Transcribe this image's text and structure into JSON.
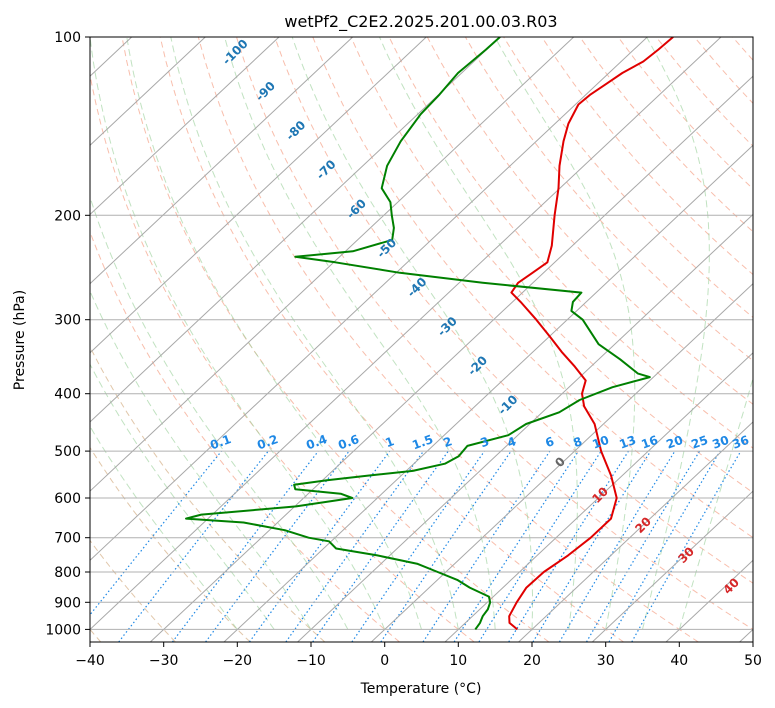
{
  "chart_data": {
    "type": "skewt",
    "title": "wetPf2_C2E2.2025.201.00.03.R03",
    "xlabel": "Temperature (°C)",
    "ylabel": "Pressure (hPa)",
    "xlim": [
      -40,
      50
    ],
    "ylim": [
      1050,
      100
    ],
    "x_ticks": [
      "−40",
      "−30",
      "−20",
      "−10",
      "0",
      "10",
      "20",
      "30",
      "40",
      "50"
    ],
    "y_ticks": [
      "100",
      "200",
      "300",
      "400",
      "500",
      "600",
      "700",
      "800",
      "900",
      "1000"
    ],
    "grid": true,
    "series": [
      {
        "name": "",
        "color": "#e00000",
        "points": [
          [
            1000,
            18.0
          ],
          [
            975,
            16.0
          ],
          [
            950,
            15.0
          ],
          [
            900,
            14.0
          ],
          [
            850,
            13.2
          ],
          [
            800,
            13.3
          ],
          [
            750,
            14.2
          ],
          [
            700,
            14.7
          ],
          [
            650,
            14.7
          ],
          [
            600,
            12.5
          ],
          [
            550,
            8.5
          ],
          [
            500,
            3.6
          ],
          [
            450,
            -1.2
          ],
          [
            420,
            -5.2
          ],
          [
            400,
            -7.3
          ],
          [
            380,
            -8.7
          ],
          [
            360,
            -12.2
          ],
          [
            340,
            -16.1
          ],
          [
            320,
            -20.0
          ],
          [
            300,
            -24.2
          ],
          [
            280,
            -28.9
          ],
          [
            270,
            -31.5
          ],
          [
            260,
            -32.0
          ],
          [
            250,
            -31.5
          ],
          [
            240,
            -31.0
          ],
          [
            225,
            -32.8
          ],
          [
            200,
            -36.8
          ],
          [
            180,
            -40.2
          ],
          [
            165,
            -43.3
          ],
          [
            150,
            -46.3
          ],
          [
            140,
            -48.2
          ],
          [
            130,
            -49.6
          ],
          [
            125,
            -49.4
          ],
          [
            120,
            -48.8
          ],
          [
            115,
            -48.2
          ],
          [
            110,
            -47.0
          ],
          [
            105,
            -46.7
          ],
          [
            100,
            -46.5
          ]
        ]
      },
      {
        "name": "",
        "color": "#008000",
        "points": [
          [
            1000,
            12.3
          ],
          [
            975,
            12.0
          ],
          [
            950,
            11.4
          ],
          [
            925,
            11.1
          ],
          [
            900,
            10.4
          ],
          [
            880,
            9.4
          ],
          [
            850,
            5.5
          ],
          [
            825,
            2.7
          ],
          [
            800,
            -1.1
          ],
          [
            775,
            -5.0
          ],
          [
            750,
            -11.7
          ],
          [
            730,
            -18.3
          ],
          [
            710,
            -20.3
          ],
          [
            700,
            -23.6
          ],
          [
            680,
            -27.9
          ],
          [
            660,
            -34.6
          ],
          [
            650,
            -43.0
          ],
          [
            640,
            -41.5
          ],
          [
            620,
            -29.8
          ],
          [
            600,
            -23.4
          ],
          [
            590,
            -25.6
          ],
          [
            580,
            -32.4
          ],
          [
            570,
            -33.2
          ],
          [
            560,
            -29.4
          ],
          [
            550,
            -24.5
          ],
          [
            540,
            -19.1
          ],
          [
            525,
            -15.8
          ],
          [
            510,
            -15.0
          ],
          [
            490,
            -15.3
          ],
          [
            470,
            -11.3
          ],
          [
            450,
            -10.5
          ],
          [
            430,
            -7.7
          ],
          [
            410,
            -6.7
          ],
          [
            390,
            -4.1
          ],
          [
            375,
            -0.5
          ],
          [
            370,
            -2.6
          ],
          [
            350,
            -7.1
          ],
          [
            330,
            -12.2
          ],
          [
            300,
            -17.9
          ],
          [
            290,
            -20.7
          ],
          [
            280,
            -21.8
          ],
          [
            270,
            -22.0
          ],
          [
            260,
            -36.8
          ],
          [
            250,
            -49.5
          ],
          [
            240,
            -59.8
          ],
          [
            235,
            -66.0
          ],
          [
            230,
            -59.0
          ],
          [
            220,
            -55.3
          ],
          [
            210,
            -56.8
          ],
          [
            200,
            -58.9
          ],
          [
            190,
            -61.0
          ],
          [
            180,
            -64.2
          ],
          [
            165,
            -66.7
          ],
          [
            150,
            -68.4
          ],
          [
            135,
            -69.6
          ],
          [
            125,
            -69.9
          ],
          [
            115,
            -70.5
          ],
          [
            105,
            -70.1
          ],
          [
            100,
            -70.0
          ]
        ]
      }
    ],
    "saturated_adiabat_labels": [
      "-100",
      "-90",
      "-80",
      "-70",
      "-60",
      "-50",
      "-40",
      "-30",
      "-20",
      "-10"
    ],
    "mixing_ratio_labels": [
      "0.1",
      "0.2",
      "0.4",
      "0.6",
      "1",
      "1.5",
      "2",
      "3",
      "4",
      "6",
      "8",
      "10",
      "13",
      "16",
      "20",
      "25",
      "30",
      "36"
    ],
    "dry_adiabat_labels": [
      "0",
      "10",
      "20",
      "30",
      "40"
    ]
  }
}
